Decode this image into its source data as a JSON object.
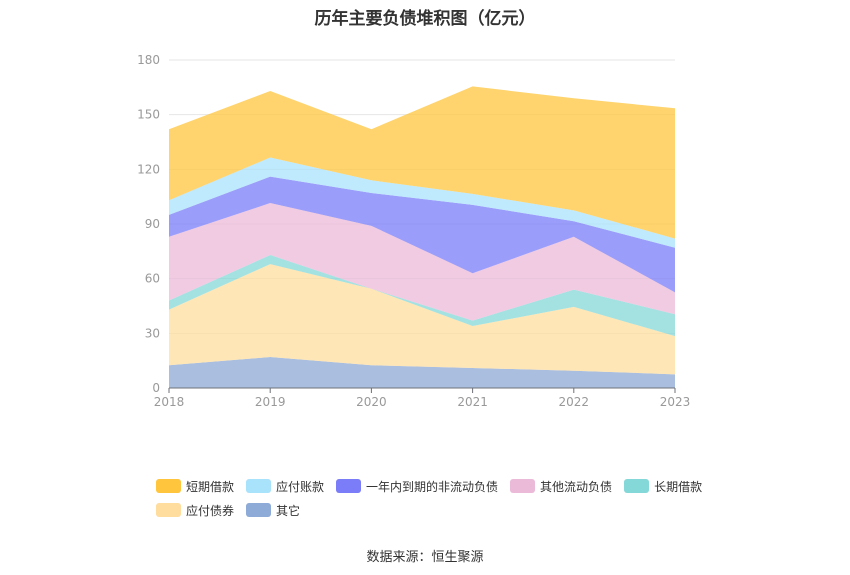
{
  "source_label": "数据来源：恒生聚源",
  "chart_data": {
    "type": "area",
    "stacked": true,
    "title": "历年主要负债堆积图（亿元）",
    "categories": [
      "2018",
      "2019",
      "2020",
      "2021",
      "2022",
      "2023"
    ],
    "ylim": [
      0,
      180
    ],
    "yticks": [
      "0",
      "30",
      "60",
      "90",
      "120",
      "150",
      "180"
    ],
    "grid": true,
    "legend_position": "bottom",
    "series": [
      {
        "name": "其它",
        "values": [
          12.5,
          17.0,
          12.5,
          11.0,
          9.5,
          7.5
        ],
        "color": "#8eaad6"
      },
      {
        "name": "应付债券",
        "values": [
          30.5,
          51.0,
          42.0,
          23.0,
          35.0,
          21.0
        ],
        "color": "#fedd9e"
      },
      {
        "name": "长期借款",
        "values": [
          5.0,
          5.0,
          0.0,
          3.0,
          9.5,
          12.0
        ],
        "color": "#85d8d8"
      },
      {
        "name": "其他流动负债",
        "values": [
          35.0,
          28.5,
          34.5,
          26.0,
          29.0,
          12.0
        ],
        "color": "#ebbad8"
      },
      {
        "name": "一年内到期的非流动负债",
        "values": [
          12.0,
          14.5,
          18.0,
          37.5,
          8.5,
          24.5
        ],
        "color": "#7a7cf8"
      },
      {
        "name": "应付账款",
        "values": [
          8.0,
          10.5,
          7.0,
          6.0,
          6.0,
          5.0
        ],
        "color": "#a9e2fb"
      },
      {
        "name": "短期借款",
        "values": [
          39.0,
          36.5,
          28.0,
          59.0,
          61.5,
          71.5
        ],
        "color": "#ffc53d"
      }
    ],
    "legend_order": [
      "短期借款",
      "应付账款",
      "一年内到期的非流动负债",
      "其他流动负债",
      "长期借款",
      "应付债券",
      "其它"
    ]
  }
}
